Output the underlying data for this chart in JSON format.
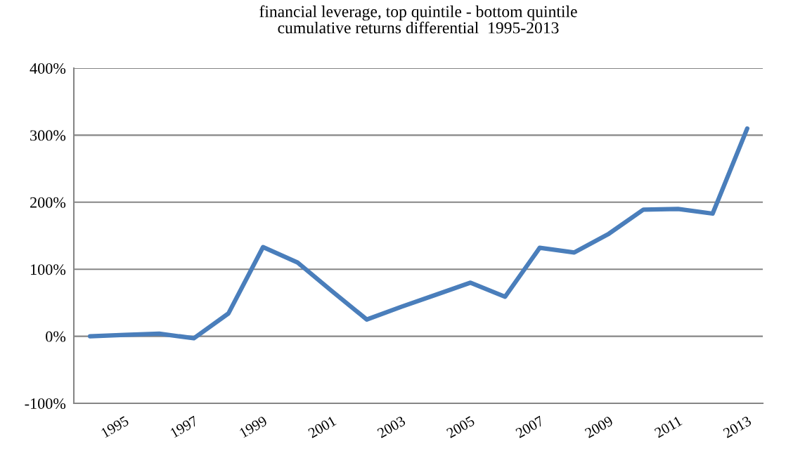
{
  "chart_data": {
    "type": "line",
    "title": "financial leverage, top quintile - bottom quintile\ncumulative returns differential  1995-2013",
    "categories": [
      null,
      "1995",
      null,
      "1997",
      null,
      "1999",
      null,
      "2001",
      null,
      "2003",
      null,
      "2005",
      null,
      "2007",
      null,
      "2009",
      null,
      "2011",
      null,
      "2013"
    ],
    "series": [
      {
        "color": "#4a7ebb",
        "values": [
          0,
          2,
          4,
          -3,
          34,
          133,
          110,
          67,
          25,
          44,
          62,
          80,
          59,
          132,
          125,
          153,
          189,
          190,
          183,
          310
        ]
      }
    ],
    "ylim": [
      -100,
      400
    ],
    "yticks": [
      {
        "value": -100,
        "label": "-100%"
      },
      {
        "value": 0,
        "label": "0%"
      },
      {
        "value": 100,
        "label": "100%"
      },
      {
        "value": 200,
        "label": "200%"
      },
      {
        "value": 300,
        "label": "300%"
      },
      {
        "value": 400,
        "label": "400%"
      }
    ],
    "grid": "y",
    "legend": false,
    "marker": "none",
    "line_style": "solid"
  }
}
